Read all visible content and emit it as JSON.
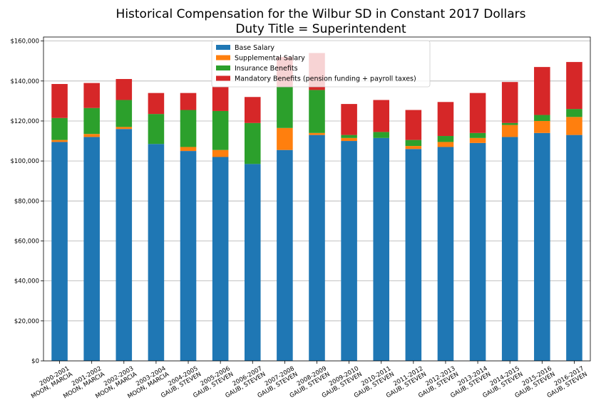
{
  "chart_data": {
    "type": "bar",
    "stacked": true,
    "title": "Historical Compensation for the Wilbur SD in Constant 2017 Dollars",
    "subtitle": "Duty Title = Superintendent",
    "ylim": [
      0,
      162000
    ],
    "yticks": [
      "$0",
      "$20,000",
      "$40,000",
      "$60,000",
      "$80,000",
      "$100,000",
      "$120,000",
      "$140,000",
      "$160,000"
    ],
    "ytick_values": [
      0,
      20000,
      40000,
      60000,
      80000,
      100000,
      120000,
      140000,
      160000
    ],
    "grid": "horizontal",
    "legend_position": "top-center",
    "categories": [
      [
        "2000-2001",
        "MOON, MARCIA"
      ],
      [
        "2001-2002",
        "MOON, MARCIA"
      ],
      [
        "2002-2003",
        "MOON, MARCIA"
      ],
      [
        "2003-2004",
        "MOON, MARCIA"
      ],
      [
        "2004-2005",
        "GAUB, STEVEN"
      ],
      [
        "2005-2006",
        "GAUB, STEVEN"
      ],
      [
        "2006-2007",
        "GAUB, STEVEN"
      ],
      [
        "2007-2008",
        "GAUB, STEVEN"
      ],
      [
        "2008-2009",
        "GAUB, STEVEN"
      ],
      [
        "2009-2010",
        "GAUB, STEVEN"
      ],
      [
        "2010-2011",
        "GAUB, STEVEN"
      ],
      [
        "2011-2012",
        "GAUB, STEVEN"
      ],
      [
        "2012-2013",
        "GAUB, STEVEN"
      ],
      [
        "2013-2014",
        "GAUB, STEVEN"
      ],
      [
        "2014-2015",
        "GAUB, STEVEN"
      ],
      [
        "2015-2016",
        "GAUB, STEVEN"
      ],
      [
        "2016-2017",
        "GAUB, STEVEN"
      ]
    ],
    "series": [
      {
        "name": "Base Salary",
        "color": "#1f77b4",
        "values": [
          109500,
          112000,
          116000,
          108500,
          105000,
          102000,
          98500,
          105500,
          113000,
          110000,
          111500,
          106000,
          107000,
          109000,
          112000,
          114000,
          113000
        ]
      },
      {
        "name": "Supplemental Salary",
        "color": "#ff7f0e",
        "values": [
          1000,
          1500,
          1000,
          0,
          2000,
          3500,
          0,
          11000,
          1000,
          1500,
          0,
          1500,
          2500,
          2500,
          6000,
          6000,
          9000
        ]
      },
      {
        "name": "Insurance Benefits",
        "color": "#2ca02c",
        "values": [
          11000,
          13000,
          13500,
          15000,
          18500,
          19500,
          20500,
          20500,
          21500,
          1500,
          3000,
          3000,
          3000,
          2500,
          1000,
          3000,
          4000
        ]
      },
      {
        "name": "Mandatory Benefits (pension funding + payroll taxes)",
        "color": "#d62728",
        "values": [
          17000,
          12500,
          10500,
          10500,
          8500,
          12000,
          13000,
          15000,
          18500,
          15500,
          16000,
          15000,
          17000,
          20000,
          20500,
          24000,
          23500
        ]
      }
    ]
  }
}
